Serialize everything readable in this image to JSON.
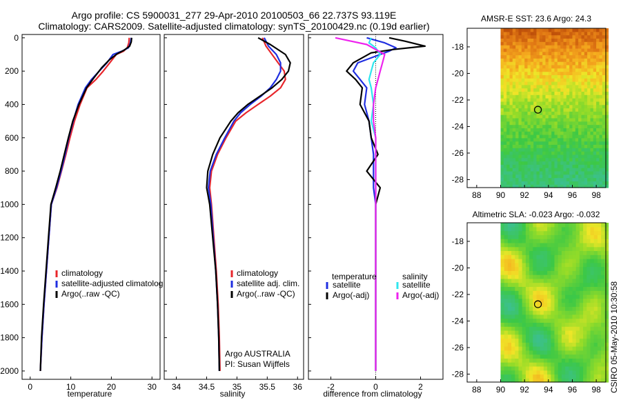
{
  "figure": {
    "title_line1": "Argo profile: CS 5900031_277 29-Apr-2010 20100503_66 22.737S 93.119E",
    "title_line2": "Climatology: CARS2009. Satellite-adjusted climatology: synTS_20100429.nc (0.19d earlier)",
    "side_label": "CSIRO 05-May-2010 10:30:58"
  },
  "colors": {
    "climatology": "#e8262b",
    "satellite": "#1f2ee0",
    "argo": "#000000",
    "salinity_satellite": "#2fe6ee",
    "salinity_argo": "#ee22ee"
  },
  "chart_data": [
    {
      "id": "temperature",
      "type": "line",
      "xlabel": "temperature",
      "xlim": [
        -2,
        32
      ],
      "ylim": [
        2050,
        -20
      ],
      "x_ticks": [
        0,
        10,
        20,
        30
      ],
      "y_ticks": [
        0,
        200,
        400,
        600,
        800,
        1000,
        1200,
        1400,
        1600,
        1800,
        2000
      ],
      "legend": [
        "climatology",
        "satellite-adjusted climatolog",
        "Argo(..raw -QC)"
      ],
      "series": [
        {
          "name": "climatology",
          "color_key": "climatology",
          "points": [
            [
              24.4,
              0
            ],
            [
              24.3,
              30
            ],
            [
              23.9,
              60
            ],
            [
              23.0,
              80
            ],
            [
              21.2,
              100
            ],
            [
              19.6,
              150
            ],
            [
              18.0,
              200
            ],
            [
              16.2,
              250
            ],
            [
              14.0,
              300
            ],
            [
              12.3,
              400
            ],
            [
              10.9,
              500
            ],
            [
              9.8,
              600
            ],
            [
              8.8,
              700
            ],
            [
              7.7,
              800
            ],
            [
              6.6,
              900
            ],
            [
              5.2,
              1000
            ],
            [
              4.6,
              1200
            ],
            [
              4.0,
              1400
            ],
            [
              3.4,
              1600
            ],
            [
              2.9,
              1800
            ],
            [
              2.5,
              2000
            ]
          ]
        },
        {
          "name": "satellite-adjusted climatolog",
          "color_key": "satellite",
          "points": [
            [
              24.9,
              0
            ],
            [
              24.7,
              30
            ],
            [
              24.2,
              60
            ],
            [
              22.6,
              80
            ],
            [
              20.4,
              100
            ],
            [
              18.9,
              150
            ],
            [
              17.0,
              200
            ],
            [
              15.1,
              250
            ],
            [
              13.6,
              300
            ],
            [
              11.8,
              400
            ],
            [
              10.6,
              500
            ],
            [
              9.5,
              600
            ],
            [
              8.6,
              700
            ],
            [
              7.6,
              800
            ],
            [
              6.5,
              900
            ],
            [
              5.2,
              1000
            ],
            [
              4.6,
              1200
            ],
            [
              4.0,
              1400
            ],
            [
              3.4,
              1600
            ],
            [
              2.9,
              1800
            ],
            [
              2.5,
              2000
            ]
          ]
        },
        {
          "name": "Argo(..raw -QC)",
          "color_key": "argo",
          "points": [
            [
              25.0,
              0
            ],
            [
              24.9,
              25
            ],
            [
              24.5,
              50
            ],
            [
              23.1,
              75
            ],
            [
              21.5,
              95
            ],
            [
              19.6,
              130
            ],
            [
              17.6,
              180
            ],
            [
              15.7,
              240
            ],
            [
              13.9,
              300
            ],
            [
              12.0,
              400
            ],
            [
              10.5,
              500
            ],
            [
              9.4,
              600
            ],
            [
              8.4,
              700
            ],
            [
              7.4,
              800
            ],
            [
              6.3,
              900
            ],
            [
              5.1,
              1000
            ],
            [
              4.5,
              1200
            ],
            [
              3.9,
              1400
            ],
            [
              3.3,
              1600
            ],
            [
              2.8,
              1800
            ],
            [
              2.5,
              2000
            ]
          ]
        }
      ]
    },
    {
      "id": "salinity",
      "type": "line",
      "xlabel": "salinity",
      "xlim": [
        33.8,
        36.1
      ],
      "ylim": [
        2050,
        -20
      ],
      "x_ticks": [
        34,
        34.5,
        35,
        35.5,
        36
      ],
      "x_tick_labels": [
        "34",
        "34.5",
        "35",
        "35.5",
        "36"
      ],
      "legend": [
        "climatology",
        "satellite adj. clim.",
        "Argo(..raw -QC)"
      ],
      "annotation": [
        "Argo AUSTRALIA",
        "PI: Susan Wijffels"
      ],
      "series": [
        {
          "name": "climatology",
          "color_key": "climatology",
          "points": [
            [
              35.42,
              0
            ],
            [
              35.48,
              50
            ],
            [
              35.58,
              100
            ],
            [
              35.68,
              150
            ],
            [
              35.78,
              200
            ],
            [
              35.8,
              250
            ],
            [
              35.72,
              300
            ],
            [
              35.55,
              350
            ],
            [
              35.35,
              400
            ],
            [
              35.15,
              450
            ],
            [
              34.98,
              500
            ],
            [
              34.82,
              600
            ],
            [
              34.68,
              700
            ],
            [
              34.58,
              800
            ],
            [
              34.55,
              900
            ],
            [
              34.58,
              1000
            ],
            [
              34.62,
              1200
            ],
            [
              34.66,
              1400
            ],
            [
              34.69,
              1600
            ],
            [
              34.71,
              1800
            ],
            [
              34.72,
              2000
            ]
          ]
        },
        {
          "name": "satellite adj. clim.",
          "color_key": "satellite",
          "points": [
            [
              35.45,
              0
            ],
            [
              35.52,
              50
            ],
            [
              35.65,
              100
            ],
            [
              35.72,
              150
            ],
            [
              35.72,
              200
            ],
            [
              35.65,
              250
            ],
            [
              35.55,
              300
            ],
            [
              35.4,
              350
            ],
            [
              35.22,
              400
            ],
            [
              35.06,
              450
            ],
            [
              34.95,
              500
            ],
            [
              34.8,
              600
            ],
            [
              34.66,
              700
            ],
            [
              34.56,
              800
            ],
            [
              34.53,
              900
            ],
            [
              34.57,
              1000
            ],
            [
              34.61,
              1200
            ],
            [
              34.65,
              1400
            ],
            [
              34.68,
              1600
            ],
            [
              34.7,
              1800
            ],
            [
              34.71,
              2000
            ]
          ]
        },
        {
          "name": "Argo(..raw -QC)",
          "color_key": "argo",
          "points": [
            [
              35.35,
              0
            ],
            [
              35.55,
              40
            ],
            [
              35.8,
              100
            ],
            [
              35.88,
              150
            ],
            [
              35.85,
              200
            ],
            [
              35.74,
              250
            ],
            [
              35.58,
              300
            ],
            [
              35.38,
              350
            ],
            [
              35.18,
              400
            ],
            [
              35.02,
              450
            ],
            [
              34.9,
              500
            ],
            [
              34.72,
              600
            ],
            [
              34.6,
              700
            ],
            [
              34.52,
              800
            ],
            [
              34.5,
              900
            ],
            [
              34.55,
              1000
            ],
            [
              34.6,
              1200
            ],
            [
              34.65,
              1400
            ],
            [
              34.68,
              1600
            ],
            [
              34.7,
              1800
            ],
            [
              34.71,
              2000
            ]
          ]
        }
      ]
    },
    {
      "id": "difference",
      "type": "line",
      "xlabel": "difference from climatology",
      "xlim": [
        -3,
        3
      ],
      "ylim": [
        2050,
        -20
      ],
      "x_ticks": [
        -2,
        0,
        2
      ],
      "legend_temperature_header": "temperature",
      "legend_salinity_header": "salinity",
      "legend_temperature": [
        "satellite",
        "Argo(-adj)"
      ],
      "legend_salinity": [
        "satellite",
        "Argo(-adj)"
      ],
      "series": [
        {
          "name": "temperature satellite",
          "color_key": "satellite",
          "points": [
            [
              -0.4,
              0
            ],
            [
              0.4,
              30
            ],
            [
              0.9,
              60
            ],
            [
              0.6,
              80
            ],
            [
              0.2,
              100
            ],
            [
              -0.8,
              150
            ],
            [
              -1.0,
              200
            ],
            [
              -0.7,
              250
            ],
            [
              -0.4,
              300
            ],
            [
              -0.5,
              400
            ],
            [
              -0.3,
              500
            ],
            [
              -0.2,
              600
            ],
            [
              -0.1,
              700
            ],
            [
              -0.1,
              800
            ],
            [
              -0.1,
              900
            ],
            [
              0.0,
              1000
            ],
            [
              0.0,
              1200
            ],
            [
              0.0,
              1400
            ],
            [
              0.0,
              1600
            ],
            [
              0.0,
              1800
            ],
            [
              0.0,
              2000
            ]
          ]
        },
        {
          "name": "temperature Argo(-adj)",
          "color_key": "argo",
          "points": [
            [
              0.6,
              0
            ],
            [
              1.3,
              20
            ],
            [
              2.2,
              50
            ],
            [
              0.8,
              70
            ],
            [
              -0.2,
              90
            ],
            [
              -1.0,
              150
            ],
            [
              -1.3,
              200
            ],
            [
              -0.9,
              250
            ],
            [
              -0.6,
              300
            ],
            [
              -0.7,
              400
            ],
            [
              -0.3,
              500
            ],
            [
              -0.2,
              600
            ],
            [
              0.1,
              700
            ],
            [
              -0.4,
              800
            ],
            [
              0.2,
              900
            ],
            [
              0.0,
              1000
            ],
            [
              0.0,
              1200
            ],
            [
              0.0,
              1400
            ],
            [
              0.0,
              1600
            ],
            [
              0.0,
              1800
            ],
            [
              0.0,
              2000
            ]
          ]
        },
        {
          "name": "salinity satellite",
          "color_key": "salinity_satellite",
          "points": [
            [
              -0.2,
              0
            ],
            [
              -0.3,
              30
            ],
            [
              0.0,
              60
            ],
            [
              0.2,
              100
            ],
            [
              -0.1,
              150
            ],
            [
              -0.2,
              200
            ],
            [
              -0.3,
              250
            ],
            [
              -0.2,
              300
            ],
            [
              -0.1,
              400
            ],
            [
              -0.2,
              500
            ],
            [
              0.0,
              600
            ],
            [
              0.0,
              800
            ],
            [
              0.0,
              1000
            ],
            [
              0.0,
              1200
            ],
            [
              0.0,
              1400
            ],
            [
              0.0,
              1600
            ],
            [
              0.0,
              1800
            ],
            [
              0.0,
              2000
            ]
          ]
        },
        {
          "name": "salinity Argo(-adj)",
          "color_key": "salinity_argo",
          "points": [
            [
              -1.8,
              0
            ],
            [
              -0.4,
              40
            ],
            [
              0.4,
              100
            ],
            [
              0.3,
              150
            ],
            [
              0.2,
              200
            ],
            [
              0.1,
              250
            ],
            [
              0.0,
              300
            ],
            [
              -0.1,
              400
            ],
            [
              -0.1,
              500
            ],
            [
              0.0,
              600
            ],
            [
              0.0,
              800
            ],
            [
              0.0,
              1000
            ],
            [
              0.0,
              1200
            ],
            [
              0.0,
              1400
            ],
            [
              0.0,
              1600
            ],
            [
              0.0,
              1800
            ],
            [
              0.0,
              2000
            ]
          ]
        }
      ]
    },
    {
      "id": "sst_map",
      "type": "heatmap",
      "title": "AMSR-E SST: 23.6 Argo: 24.3",
      "xlim": [
        87.2,
        98.8
      ],
      "ylim": [
        -28.6,
        -16.6
      ],
      "x_ticks": [
        88,
        90,
        92,
        94,
        96,
        98
      ],
      "y_ticks": [
        -18,
        -20,
        -22,
        -24,
        -26,
        -28
      ],
      "data_xlim": [
        90,
        98.8
      ],
      "data_ylim": [
        -28.6,
        -16.6
      ],
      "marker": [
        93.119,
        -22.737
      ]
    },
    {
      "id": "sla_map",
      "type": "heatmap",
      "title": "Altimetric SLA: -0.023 Argo: -0.032",
      "xlim": [
        87.2,
        98.8
      ],
      "ylim": [
        -28.6,
        -16.6
      ],
      "x_ticks": [
        88,
        90,
        92,
        94,
        96,
        98
      ],
      "y_ticks": [
        -18,
        -20,
        -22,
        -24,
        -26,
        -28
      ],
      "data_xlim": [
        90,
        98.8
      ],
      "data_ylim": [
        -28.6,
        -16.6
      ],
      "marker": [
        93.119,
        -22.737
      ]
    }
  ]
}
